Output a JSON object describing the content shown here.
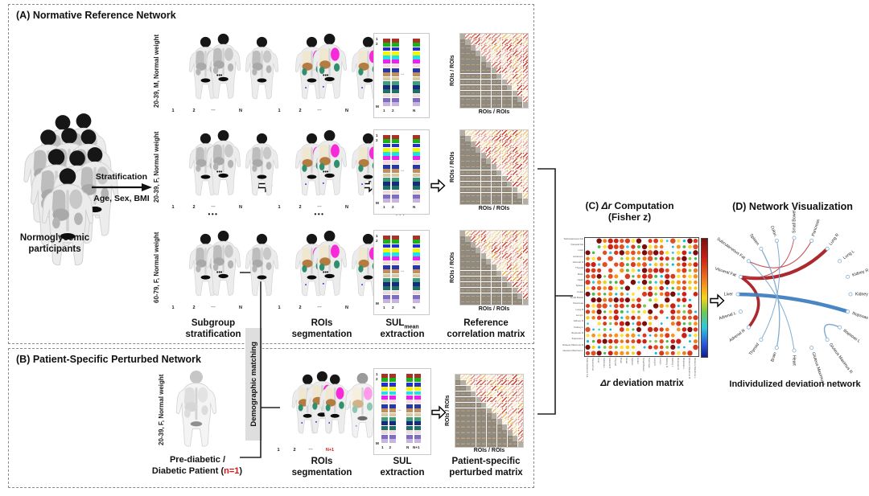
{
  "panelA": {
    "title": "(A) Normative Reference Network",
    "crowd_caption_l1": "Normoglycemic",
    "crowd_caption_l2": "participants",
    "strat_label": "Stratification",
    "strat_sub": "Age, Sex, BMI",
    "row_labels": [
      "20-39, M, Normal weight",
      "20-39, F, Normal weight",
      "60-79, F, Normal weight"
    ],
    "between_dots": "•••",
    "inline_dots": "•••",
    "body_idx": [
      "1",
      "2",
      "⋯",
      "N"
    ],
    "sul_axis": {
      "top1": "1",
      "top2": "2",
      "bottom": "M"
    },
    "sul_idx": [
      "1",
      "2",
      "N"
    ],
    "sul_gap_dots": "⋯",
    "matrix_axis": "ROIs / ROIs",
    "captions": {
      "c1a": "Subgroup",
      "c1b": "stratification",
      "c2a": "ROIs",
      "c2b": "segmentation",
      "c3a": "SUL",
      "c3sub": "mean",
      "c3b": "extraction",
      "c4a": "Reference",
      "c4b": "correlation matrix"
    }
  },
  "panelB": {
    "title": "(B) Patient-Specific Perturbed Network",
    "row_label": "20-39, F, Normal weight",
    "caption_l1": "Pre-diabetic /",
    "caption_l2_pre": "Diabetic Patient (",
    "caption_l2_red": "n=1",
    "caption_l2_post": ")",
    "body_idx": [
      "1",
      "2",
      "⋯",
      "N+1"
    ],
    "sul_axis": {
      "top1": "1",
      "top2": "2",
      "bottom": "M"
    },
    "sul_idx": [
      "1",
      "2",
      "N",
      "N+1"
    ],
    "sul_gap_dots": "⋯",
    "matrix_axis": "ROIs / ROIs",
    "captions": {
      "c2a": "ROIs",
      "c2b": "segmentation",
      "c3a": "SUL",
      "c3b": "extraction",
      "c4a": "Patient-specific",
      "c4b": "perturbed matrix"
    }
  },
  "demographic_matching": "Demographic matching",
  "panelC": {
    "title_prefix": "(C) ",
    "title_italic": "Δr",
    "title_rest": " Computation",
    "title_line2": "(Fisher z)",
    "caption_italic": "Δr",
    "caption_rest": " deviation matrix",
    "roi_labels": [
      "Subcutaneous Fat",
      "Visceral Fat",
      "Liver",
      "Adrenal L",
      "Adrenal R",
      "Thyroid",
      "Brain",
      "Heart",
      "Spleen",
      "Colon",
      "Small Bowel",
      "Pancreas",
      "Lung R",
      "Lung L",
      "Kidney R",
      "Kidney L",
      "Iliopsoas R",
      "Iliopsoas L",
      "Gluteus Maximus R",
      "Gluteus Maximus L"
    ]
  },
  "panelD": {
    "title": "(D) Network Visualization",
    "caption": "Individulized deviation network",
    "nodes": [
      "Small Bowel",
      "Pancreas",
      "Lung R",
      "Lung L",
      "Kidney R",
      "Kidney L",
      "Iliopsoas R",
      "Iliopsoas L",
      "Gluteus Maximus R",
      "Gluteus Maximus L",
      "Heart",
      "Brain",
      "Thyroid",
      "Adrenal R",
      "Adrenal L",
      "Liver",
      "Visceral Fat",
      "Subcutaneous Fat",
      "Spleen",
      "Colon"
    ],
    "edges": [
      {
        "from": "Visceral Fat",
        "to": "Lung R",
        "color": "#a81d22",
        "width": 4.2,
        "k": 0.3
      },
      {
        "from": "Visceral Fat",
        "to": "Adrenal R",
        "color": "#a81d22",
        "width": 3.6,
        "k": 0.45
      },
      {
        "from": "Subcutaneous Fat",
        "to": "Pancreas",
        "color": "#c4494d",
        "width": 1.1,
        "k": 0.3
      },
      {
        "from": "Visceral Fat",
        "to": "Small Bowel",
        "color": "#c4494d",
        "width": 0.9,
        "k": 0.3
      },
      {
        "from": "Liver",
        "to": "Iliopsoas R",
        "color": "#4080c0",
        "width": 4.6,
        "k": 0.08
      },
      {
        "from": "Spleen",
        "to": "Brain",
        "color": "#7aa8d0",
        "width": 1.3,
        "k": 0.3
      },
      {
        "from": "Colon",
        "to": "Thyroid",
        "color": "#7aa8d0",
        "width": 1.0,
        "k": 0.3
      },
      {
        "from": "Iliopsoas L",
        "to": "Gluteus Maximus R",
        "color": "#7aa8d0",
        "width": 1.5,
        "k": 0.6
      },
      {
        "from": "Subcutaneous Fat",
        "to": "Heart",
        "color": "#7aa8d0",
        "width": 1.0,
        "k": 0.3
      }
    ],
    "node_color": "#8fb8d8",
    "red": "#a81d22",
    "blue": "#4080c0"
  },
  "sul_colors": [
    "#a93226",
    "#19b219",
    "#1f2fd4",
    "#f5f50a",
    "#19e5e5",
    "#f01ff0",
    "#f3dcdc",
    "#2637a8",
    "#bf8f5f",
    "#d9c6a3",
    "#3f9e7a",
    "#172a80",
    "#1f6f62",
    "#eedcdc",
    "#7d6ec4",
    "#c9b4dc"
  ],
  "gfx": {
    "cor_n": 13,
    "dev_n": 20,
    "seeds": {
      "a0": 11,
      "a1": 29,
      "a2": 47,
      "b": 63,
      "dev": 7
    }
  }
}
